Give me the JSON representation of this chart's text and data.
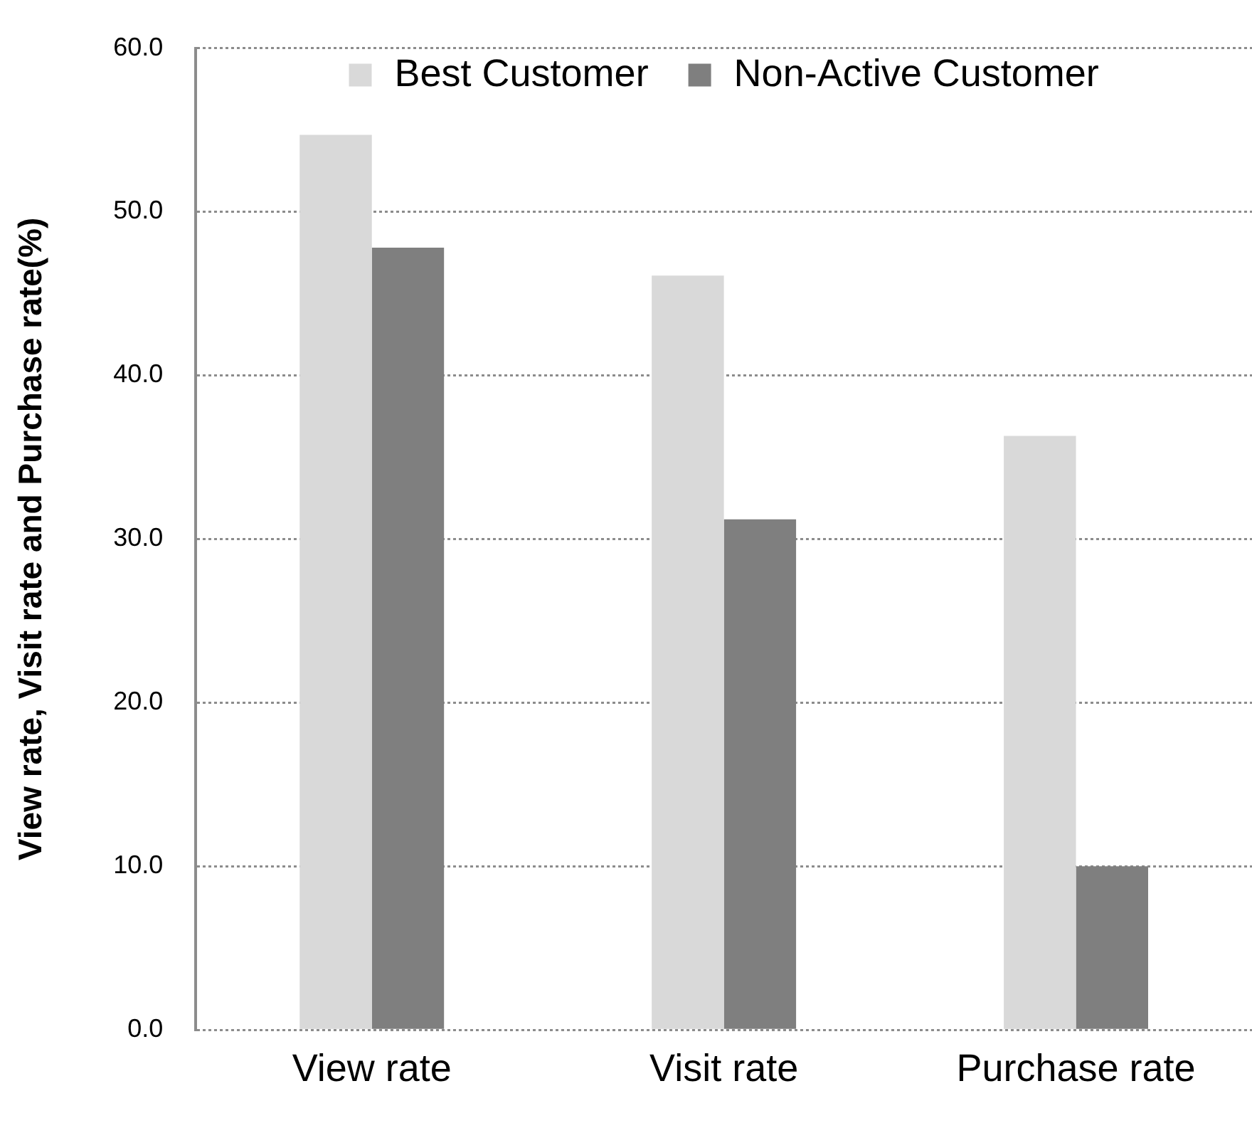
{
  "chart_data": {
    "type": "bar",
    "categories": [
      "View rate",
      "Visit rate",
      "Purchase rate"
    ],
    "series": [
      {
        "name": "Best Customer",
        "color": "#d9d9d9",
        "values": [
          54.7,
          46.1,
          36.3
        ]
      },
      {
        "name": "Non-Active Customer",
        "color": "#7f7f7f",
        "values": [
          47.8,
          31.2,
          10.0
        ]
      }
    ],
    "ylabel": "View rate, Visit rate and Purchase rate(%)",
    "ylim": [
      0,
      60
    ],
    "yticks": [
      {
        "value": 0,
        "label": "0.0"
      },
      {
        "value": 10,
        "label": "10.0"
      },
      {
        "value": 20,
        "label": "20.0"
      },
      {
        "value": 30,
        "label": "30.0"
      },
      {
        "value": 40,
        "label": "40.0"
      },
      {
        "value": 50,
        "label": "50.0"
      },
      {
        "value": 60,
        "label": "60.0"
      }
    ],
    "grid": "y",
    "legend": "top"
  }
}
